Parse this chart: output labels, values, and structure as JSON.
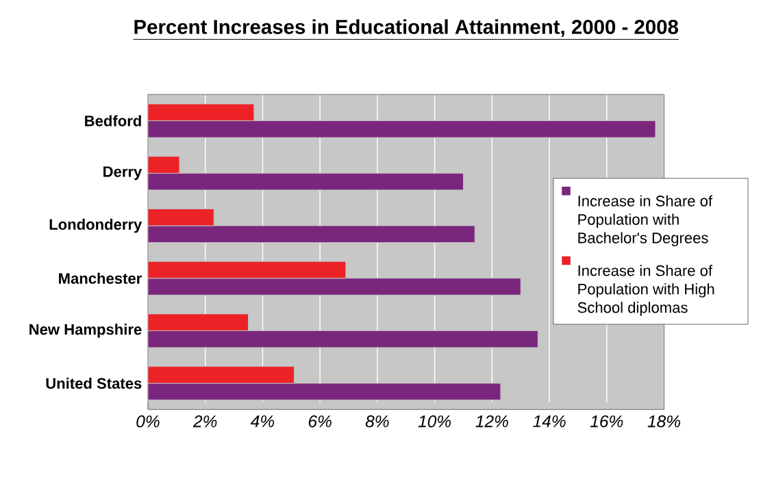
{
  "chart_data": {
    "type": "bar",
    "orientation": "horizontal",
    "title": "Percent Increases in Educational Attainment, 2000 - 2008",
    "categories": [
      "Bedford",
      "Derry",
      "Londonderry",
      "Manchester",
      "New Hampshire",
      "United States"
    ],
    "series": [
      {
        "name": "Increase in Share of Population with Bachelor's Degrees",
        "color": "#7b267d",
        "values": [
          17.7,
          11.0,
          11.4,
          13.0,
          13.6,
          12.3
        ]
      },
      {
        "name": "Increase in Share of Population with High School diplomas",
        "color": "#ec2227",
        "values": [
          3.7,
          1.1,
          2.3,
          6.9,
          3.5,
          5.1
        ]
      }
    ],
    "xlim": [
      0,
      18
    ],
    "xticks": [
      {
        "value": 0,
        "label": "0%"
      },
      {
        "value": 2,
        "label": "2%"
      },
      {
        "value": 4,
        "label": "4%"
      },
      {
        "value": 6,
        "label": "6%"
      },
      {
        "value": 8,
        "label": "8%"
      },
      {
        "value": 10,
        "label": "10%"
      },
      {
        "value": 12,
        "label": "12%"
      },
      {
        "value": 14,
        "label": "14%"
      },
      {
        "value": 16,
        "label": "16%"
      },
      {
        "value": 18,
        "label": "18%"
      }
    ],
    "grid": "x",
    "legend": "right"
  }
}
